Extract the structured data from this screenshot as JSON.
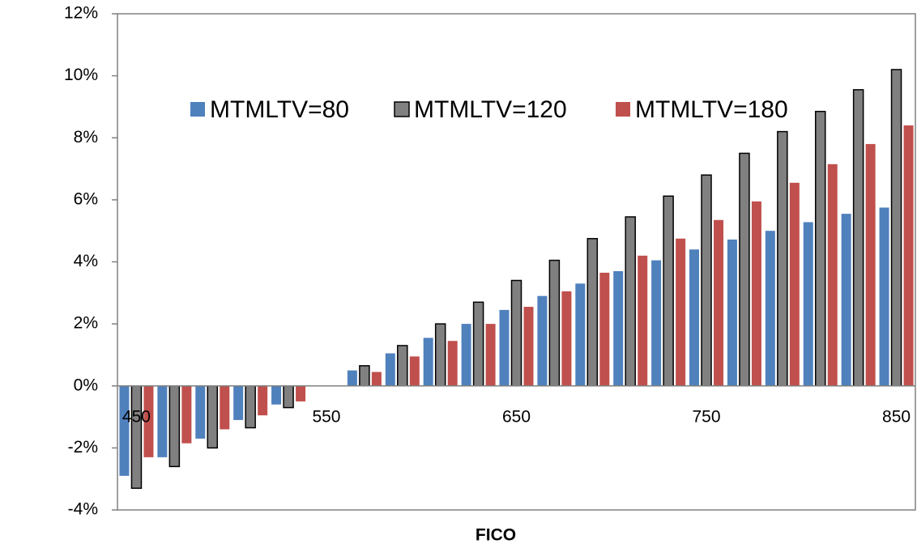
{
  "chart_data": {
    "type": "bar",
    "x_label": "FICO",
    "categories": [
      "450",
      null,
      null,
      null,
      null,
      "550",
      null,
      null,
      null,
      null,
      "650",
      null,
      null,
      null,
      null,
      "750",
      null,
      null,
      null,
      null,
      "850"
    ],
    "series": [
      {
        "name": "MTMLTV=80",
        "color": "#4f81bd",
        "values": [
          -2.9,
          -2.3,
          -1.7,
          -1.1,
          -0.6,
          0,
          0.5,
          1.05,
          1.55,
          2.0,
          2.45,
          2.9,
          3.3,
          3.7,
          4.05,
          4.4,
          4.72,
          5.0,
          5.28,
          5.55,
          5.75
        ]
      },
      {
        "name": "MTMLTV=120",
        "color": "#808080",
        "values": [
          -3.3,
          -2.6,
          -2.0,
          -1.35,
          -0.7,
          0,
          0.65,
          1.3,
          2.0,
          2.7,
          3.4,
          4.05,
          4.75,
          5.45,
          6.12,
          6.8,
          7.5,
          8.2,
          8.85,
          9.55,
          10.2
        ]
      },
      {
        "name": "MTMLTV=180",
        "color": "#c0504d",
        "values": [
          -2.3,
          -1.85,
          -1.4,
          -0.95,
          -0.5,
          0,
          0.45,
          0.95,
          1.45,
          2.0,
          2.55,
          3.05,
          3.65,
          4.2,
          4.75,
          5.35,
          5.95,
          6.55,
          7.15,
          7.8,
          8.4
        ]
      }
    ],
    "ylim": [
      -4,
      12
    ],
    "yticks": [
      {
        "value": -4,
        "label": "-4%"
      },
      {
        "value": -2,
        "label": "-2%"
      },
      {
        "value": 0,
        "label": "0%"
      },
      {
        "value": 2,
        "label": "2%"
      },
      {
        "value": 4,
        "label": "4%"
      },
      {
        "value": 6,
        "label": "6%"
      },
      {
        "value": 8,
        "label": "8%"
      },
      {
        "value": 10,
        "label": "10%"
      },
      {
        "value": 12,
        "label": "12%"
      }
    ],
    "grid": false,
    "legend": "top"
  }
}
